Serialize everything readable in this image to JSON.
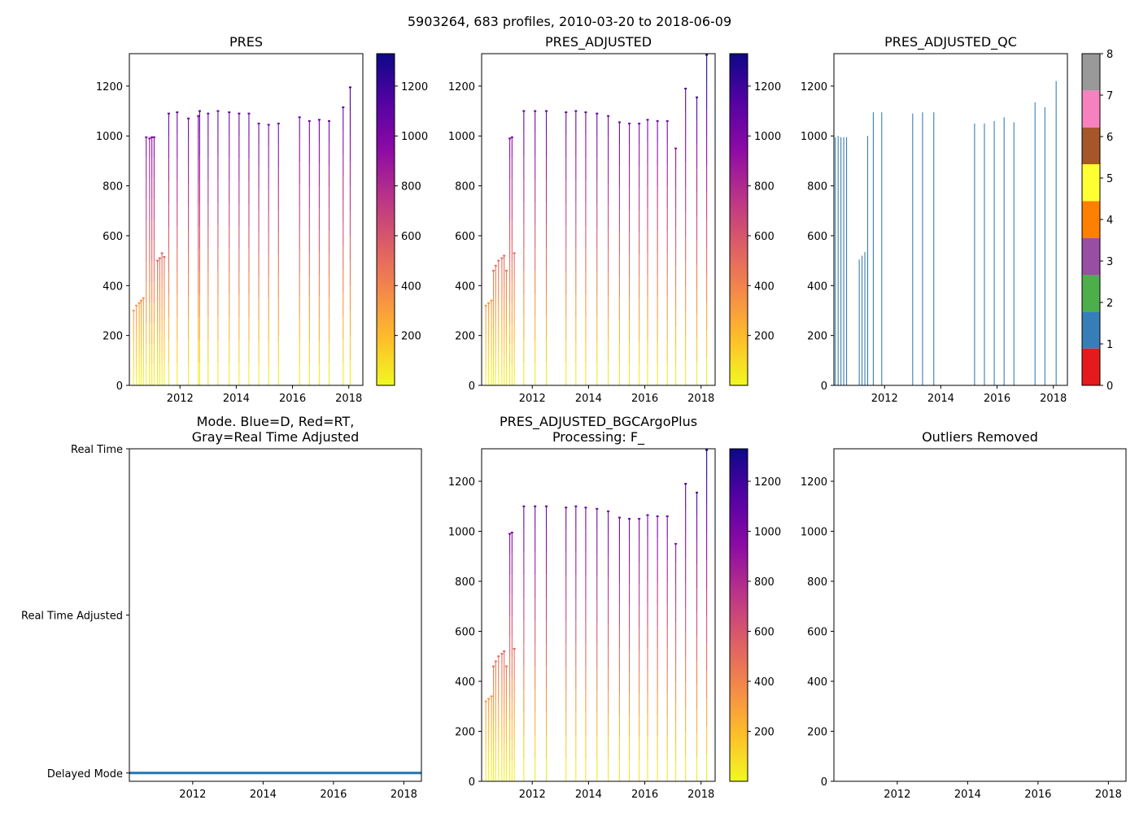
{
  "suptitle": "5903264, 683 profiles, 2010-03-20 to 2018-06-09",
  "colors": {
    "colormap_stops": [
      "#f0f921",
      "#febd2a",
      "#f48849",
      "#db5c68",
      "#b83289",
      "#8b0aa5",
      "#5302a3",
      "#0d0887"
    ],
    "qc_palette": [
      "#e41a1c",
      "#377eb8",
      "#4daf4a",
      "#984ea3",
      "#ff7f00",
      "#ffff33",
      "#a65628",
      "#f781bf",
      "#999999"
    ],
    "mode_delayed": "#1f77b4",
    "axis": "#000000"
  },
  "chart_data": [
    {
      "id": "pres",
      "type": "profile-section",
      "title": "PRES",
      "xlabel": "",
      "ylabel": "",
      "xlim": [
        2010.2,
        2018.5
      ],
      "ylim": [
        1330,
        0
      ],
      "xticks": [
        "2012",
        "2014",
        "2016",
        "2018"
      ],
      "yticks": [
        "0",
        "200",
        "400",
        "600",
        "800",
        "1000",
        "1200"
      ],
      "colorbar": {
        "range": [
          0,
          1330
        ],
        "ticks": [
          "200",
          "400",
          "600",
          "800",
          "1000",
          "1200"
        ]
      },
      "profiles": [
        {
          "t": 2010.35,
          "depth": 300
        },
        {
          "t": 2010.45,
          "depth": 320
        },
        {
          "t": 2010.55,
          "depth": 330
        },
        {
          "t": 2010.62,
          "depth": 340
        },
        {
          "t": 2010.7,
          "depth": 350
        },
        {
          "t": 2010.8,
          "depth": 995
        },
        {
          "t": 2010.92,
          "depth": 990
        },
        {
          "t": 2011.0,
          "depth": 995
        },
        {
          "t": 2011.08,
          "depth": 995
        },
        {
          "t": 2011.2,
          "depth": 500
        },
        {
          "t": 2011.28,
          "depth": 510
        },
        {
          "t": 2011.36,
          "depth": 530
        },
        {
          "t": 2011.44,
          "depth": 515
        },
        {
          "t": 2011.6,
          "depth": 1090
        },
        {
          "t": 2011.9,
          "depth": 1095
        },
        {
          "t": 2012.3,
          "depth": 1070
        },
        {
          "t": 2012.65,
          "depth": 1080
        },
        {
          "t": 2012.7,
          "depth": 1100
        },
        {
          "t": 2013.0,
          "depth": 1090
        },
        {
          "t": 2013.35,
          "depth": 1100
        },
        {
          "t": 2013.75,
          "depth": 1095
        },
        {
          "t": 2014.1,
          "depth": 1090
        },
        {
          "t": 2014.45,
          "depth": 1090
        },
        {
          "t": 2014.8,
          "depth": 1050
        },
        {
          "t": 2015.15,
          "depth": 1045
        },
        {
          "t": 2015.5,
          "depth": 1050
        },
        {
          "t": 2016.25,
          "depth": 1075
        },
        {
          "t": 2016.6,
          "depth": 1060
        },
        {
          "t": 2016.95,
          "depth": 1065
        },
        {
          "t": 2017.3,
          "depth": 1060
        },
        {
          "t": 2017.8,
          "depth": 1115
        },
        {
          "t": 2018.05,
          "depth": 1195
        }
      ]
    },
    {
      "id": "pres_adj",
      "type": "profile-section",
      "title": "PRES_ADJUSTED",
      "xlabel": "",
      "ylabel": "",
      "xlim": [
        2010.2,
        2018.5
      ],
      "ylim": [
        1330,
        0
      ],
      "xticks": [
        "2012",
        "2014",
        "2016",
        "2018"
      ],
      "yticks": [
        "0",
        "200",
        "400",
        "600",
        "800",
        "1000",
        "1200"
      ],
      "colorbar": {
        "range": [
          0,
          1330
        ],
        "ticks": [
          "200",
          "400",
          "600",
          "800",
          "1000",
          "1200"
        ]
      },
      "profiles": [
        {
          "t": 2010.35,
          "depth": 320
        },
        {
          "t": 2010.45,
          "depth": 330
        },
        {
          "t": 2010.55,
          "depth": 340
        },
        {
          "t": 2010.62,
          "depth": 460
        },
        {
          "t": 2010.7,
          "depth": 480
        },
        {
          "t": 2010.8,
          "depth": 500
        },
        {
          "t": 2010.92,
          "depth": 510
        },
        {
          "t": 2011.0,
          "depth": 520
        },
        {
          "t": 2011.08,
          "depth": 460
        },
        {
          "t": 2011.2,
          "depth": 990
        },
        {
          "t": 2011.28,
          "depth": 995
        },
        {
          "t": 2011.36,
          "depth": 530
        },
        {
          "t": 2011.7,
          "depth": 1100
        },
        {
          "t": 2012.1,
          "depth": 1100
        },
        {
          "t": 2012.5,
          "depth": 1100
        },
        {
          "t": 2013.2,
          "depth": 1095
        },
        {
          "t": 2013.55,
          "depth": 1100
        },
        {
          "t": 2013.9,
          "depth": 1095
        },
        {
          "t": 2014.3,
          "depth": 1090
        },
        {
          "t": 2014.7,
          "depth": 1080
        },
        {
          "t": 2015.1,
          "depth": 1055
        },
        {
          "t": 2015.45,
          "depth": 1050
        },
        {
          "t": 2015.8,
          "depth": 1050
        },
        {
          "t": 2016.1,
          "depth": 1065
        },
        {
          "t": 2016.45,
          "depth": 1060
        },
        {
          "t": 2016.8,
          "depth": 1060
        },
        {
          "t": 2017.1,
          "depth": 950
        },
        {
          "t": 2017.45,
          "depth": 1190
        },
        {
          "t": 2017.85,
          "depth": 1155
        },
        {
          "t": 2018.2,
          "depth": 1325
        }
      ]
    },
    {
      "id": "pres_adj_qc",
      "type": "profile-section",
      "title": "PRES_ADJUSTED_QC",
      "xlabel": "",
      "ylabel": "",
      "xlim": [
        2010.2,
        2018.5
      ],
      "ylim": [
        1330,
        0
      ],
      "xticks": [
        "2012",
        "2014",
        "2016",
        "2018"
      ],
      "yticks": [
        "0",
        "200",
        "400",
        "600",
        "800",
        "1000",
        "1200"
      ],
      "colorbar": {
        "categorical": true,
        "range": [
          0,
          8
        ],
        "ticks": [
          "0",
          "1",
          "2",
          "3",
          "4",
          "5",
          "6",
          "7",
          "8"
        ]
      },
      "qc_flag": 1,
      "profiles": [
        {
          "t": 2010.25,
          "depth": 995
        },
        {
          "t": 2010.35,
          "depth": 1000
        },
        {
          "t": 2010.45,
          "depth": 995
        },
        {
          "t": 2010.55,
          "depth": 995
        },
        {
          "t": 2010.65,
          "depth": 995
        },
        {
          "t": 2011.1,
          "depth": 505
        },
        {
          "t": 2011.2,
          "depth": 520
        },
        {
          "t": 2011.3,
          "depth": 535
        },
        {
          "t": 2011.4,
          "depth": 1000
        },
        {
          "t": 2011.6,
          "depth": 1095
        },
        {
          "t": 2011.9,
          "depth": 1095
        },
        {
          "t": 2013.0,
          "depth": 1090
        },
        {
          "t": 2013.35,
          "depth": 1095
        },
        {
          "t": 2013.75,
          "depth": 1095
        },
        {
          "t": 2015.2,
          "depth": 1050
        },
        {
          "t": 2015.55,
          "depth": 1050
        },
        {
          "t": 2015.9,
          "depth": 1060
        },
        {
          "t": 2016.25,
          "depth": 1075
        },
        {
          "t": 2016.6,
          "depth": 1055
        },
        {
          "t": 2017.35,
          "depth": 1135
        },
        {
          "t": 2017.7,
          "depth": 1115
        },
        {
          "t": 2018.1,
          "depth": 1220
        }
      ]
    },
    {
      "id": "mode",
      "type": "line",
      "title_lines": [
        "Mode. Blue=D, Red=RT,",
        "Gray=Real Time Adjusted"
      ],
      "xlabel": "",
      "ylabel": "",
      "xlim": [
        2010.2,
        2018.5
      ],
      "ylim": [
        0,
        2
      ],
      "xticks": [
        "2012",
        "2014",
        "2016",
        "2018"
      ],
      "ytick_labels": [
        "Real Time",
        "Real Time Adjusted",
        "Delayed Mode"
      ],
      "series": [
        {
          "name": "Delayed Mode",
          "x": [
            2010.2,
            2018.5
          ],
          "y": [
            1.95,
            1.95
          ]
        }
      ]
    },
    {
      "id": "pres_bgc",
      "type": "profile-section",
      "title_lines": [
        "PRES_ADJUSTED_BGCArgoPlus",
        "Processing: F_"
      ],
      "xlabel": "",
      "ylabel": "",
      "xlim": [
        2010.2,
        2018.5
      ],
      "ylim": [
        1330,
        0
      ],
      "xticks": [
        "2012",
        "2014",
        "2016",
        "2018"
      ],
      "yticks": [
        "0",
        "200",
        "400",
        "600",
        "800",
        "1000",
        "1200"
      ],
      "colorbar": {
        "range": [
          0,
          1330
        ],
        "ticks": [
          "200",
          "400",
          "600",
          "800",
          "1000",
          "1200"
        ]
      },
      "profiles": [
        {
          "t": 2010.35,
          "depth": 320
        },
        {
          "t": 2010.45,
          "depth": 330
        },
        {
          "t": 2010.55,
          "depth": 340
        },
        {
          "t": 2010.62,
          "depth": 460
        },
        {
          "t": 2010.7,
          "depth": 480
        },
        {
          "t": 2010.8,
          "depth": 500
        },
        {
          "t": 2010.92,
          "depth": 510
        },
        {
          "t": 2011.0,
          "depth": 520
        },
        {
          "t": 2011.08,
          "depth": 460
        },
        {
          "t": 2011.2,
          "depth": 990
        },
        {
          "t": 2011.28,
          "depth": 995
        },
        {
          "t": 2011.36,
          "depth": 530
        },
        {
          "t": 2011.7,
          "depth": 1100
        },
        {
          "t": 2012.1,
          "depth": 1100
        },
        {
          "t": 2012.5,
          "depth": 1100
        },
        {
          "t": 2013.2,
          "depth": 1095
        },
        {
          "t": 2013.55,
          "depth": 1100
        },
        {
          "t": 2013.9,
          "depth": 1095
        },
        {
          "t": 2014.3,
          "depth": 1090
        },
        {
          "t": 2014.7,
          "depth": 1080
        },
        {
          "t": 2015.1,
          "depth": 1055
        },
        {
          "t": 2015.45,
          "depth": 1050
        },
        {
          "t": 2015.8,
          "depth": 1050
        },
        {
          "t": 2016.1,
          "depth": 1065
        },
        {
          "t": 2016.45,
          "depth": 1060
        },
        {
          "t": 2016.8,
          "depth": 1060
        },
        {
          "t": 2017.1,
          "depth": 950
        },
        {
          "t": 2017.45,
          "depth": 1190
        },
        {
          "t": 2017.85,
          "depth": 1155
        },
        {
          "t": 2018.2,
          "depth": 1325
        }
      ]
    },
    {
      "id": "outliers",
      "type": "scatter",
      "title": "Outliers Removed",
      "xlabel": "",
      "ylabel": "",
      "xlim": [
        2010.2,
        2018.5
      ],
      "ylim": [
        1330,
        0
      ],
      "xticks": [
        "2012",
        "2014",
        "2016",
        "2018"
      ],
      "yticks": [
        "0",
        "200",
        "400",
        "600",
        "800",
        "1000",
        "1200"
      ],
      "points": []
    }
  ]
}
